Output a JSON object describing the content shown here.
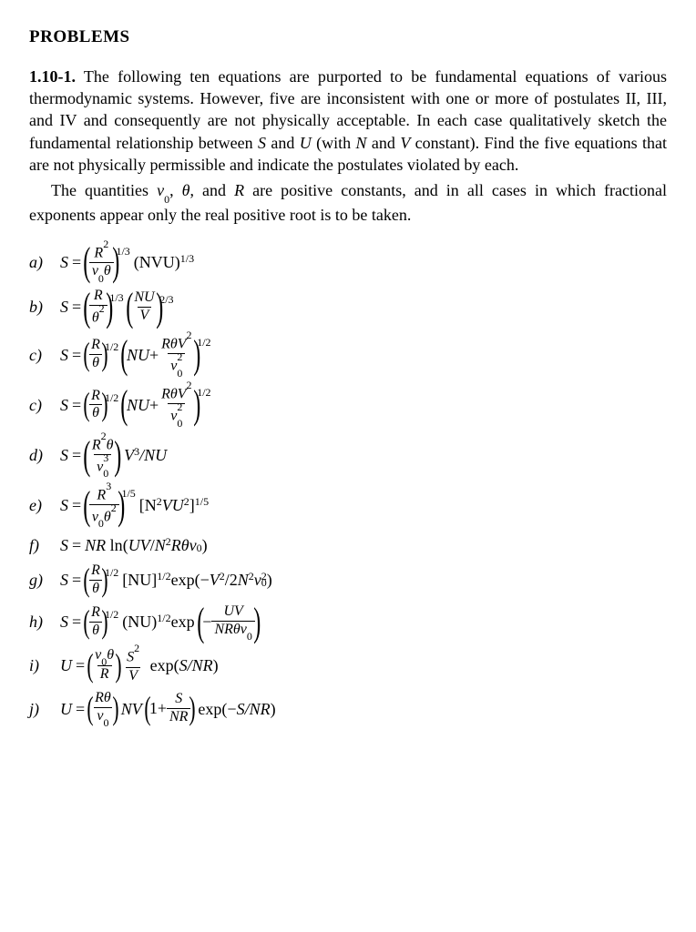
{
  "heading": "PROBLEMS",
  "problem_number": "1.10-1.",
  "para1": " The following ten equations are purported to be fundamental equations of various thermodynamic systems. However, five are inconsistent with one or more of postulates II, III, and IV and consequently are not physically acceptable.  In each case qualitatively sketch the fundamental relationship between ",
  "para1_var1": "S",
  "para1_mid1": " and ",
  "para1_var2": "U",
  "para1_mid2": " (with ",
  "para1_var3": "N",
  "para1_mid3": " and ",
  "para1_var4": "V",
  "para1_end": " constant). Find the five equations that are not physically permissible and indicate the postulates violated by each.",
  "para2a": "The quantities ",
  "para2_var1": "v",
  "para2_sub1": "0",
  "para2_mid1": ", ",
  "para2_var2": "θ",
  "para2_mid2": ", and ",
  "para2_var3": "R",
  "para2b": " are positive constants, and in all cases in which fractional exponents appear only the real positive root is to be taken.",
  "labels": {
    "a": "a)",
    "b": "b)",
    "c": "c)",
    "c2": "c)",
    "d": "d)",
    "e": "e)",
    "f": "f)",
    "g": "g)",
    "h": "h)",
    "i": "i)",
    "j": "j)"
  },
  "sym": {
    "S": "S",
    "U": "U",
    "R": "R",
    "N": "N",
    "V": "V",
    "v": "v",
    "theta": "θ",
    "eq": " = ",
    "plus": " + ",
    "minus": "− ",
    "NU": "NU",
    "UV": "UV",
    "NV": "NV",
    "NVU": "NVU",
    "ln": "ln",
    "exp": "exp",
    "one": "1"
  },
  "exp": {
    "third": "1/3",
    "twothird": "2/3",
    "half": "1/2",
    "fifth": "1/5",
    "sq": "2",
    "cube": "3"
  },
  "sub0": "0",
  "eq_a": {
    "num": "R",
    "num_sup": "2",
    "den_a": "v",
    "den_a_sub": "0",
    "den_b": "θ",
    "tail": "(NVU)",
    "tail_sup": "1/3"
  },
  "eq_b": {
    "num": "R",
    "den": "θ",
    "den_sup": "2",
    "p2_num": "NU",
    "p2_den": "V"
  },
  "eq_c": {
    "num": "R",
    "den": "θ",
    "t1": "NU",
    "t2_num_a": "Rθ",
    "t2_num_b": "V",
    "t2_num_b_sup": "2",
    "t2_den_a": "v",
    "t2_den_sub": "0",
    "t2_den_sup": "2"
  },
  "eq_d": {
    "num_a": "R",
    "num_a_sup": "2",
    "num_b": "θ",
    "den_a": "v",
    "den_sub": "0",
    "den_sup": "3",
    "tail_a": "V",
    "tail_a_sup": "3",
    "tail_b": "/NU"
  },
  "eq_e": {
    "num": "R",
    "num_sup": "3",
    "den_a": "v",
    "den_a_sub": "0",
    "den_b": "θ",
    "den_b_sup": "2",
    "tail": "[N",
    "tail_sup1": "2",
    "tail_mid": "VU",
    "tail_sup2": "2",
    "tail_end": "]",
    "tail_out_sup": "1/5"
  },
  "eq_f": {
    "pre": "NR",
    "ln": "ln",
    "open": "(",
    "uv": "UV",
    "slash": "/",
    "n": "N",
    "n_sup": "2",
    "r": "Rθ",
    "v": "v",
    "v_sub": "0",
    "close": ")"
  },
  "eq_g": {
    "num": "R",
    "den": "θ",
    "mid": "[NU]",
    "mid_sup": "1/2",
    "exp": "exp(",
    "neg": "− ",
    "v": "V",
    "v_sup": "2",
    "slash": "/2",
    "n": "N",
    "n_sup": "2",
    "v0": "v",
    "v0_sub": "0",
    "v0_sup": "2",
    "close": ")"
  },
  "eq_h": {
    "num": "R",
    "den": "θ",
    "mid": "(NU)",
    "mid_sup": "1/2",
    "exp": "exp",
    "in_num": "UV",
    "in_den_a": "NRθ",
    "in_den_b": "v",
    "in_den_b_sub": "0"
  },
  "eq_i": {
    "num_a": "v",
    "num_a_sub": "0",
    "num_b": "θ",
    "den": "R",
    "f2_num": "S",
    "f2_num_sup": "2",
    "f2_den": "V",
    "exp": "exp(",
    "arg": "S/NR",
    "close": ")"
  },
  "eq_j": {
    "num": "Rθ",
    "den_a": "v",
    "den_a_sub": "0",
    "nv": "NV",
    "one": "1",
    "f_num": "S",
    "f_den": "NR",
    "exp": "exp(",
    "neg": "− ",
    "arg": "S/NR",
    "close": ")"
  }
}
